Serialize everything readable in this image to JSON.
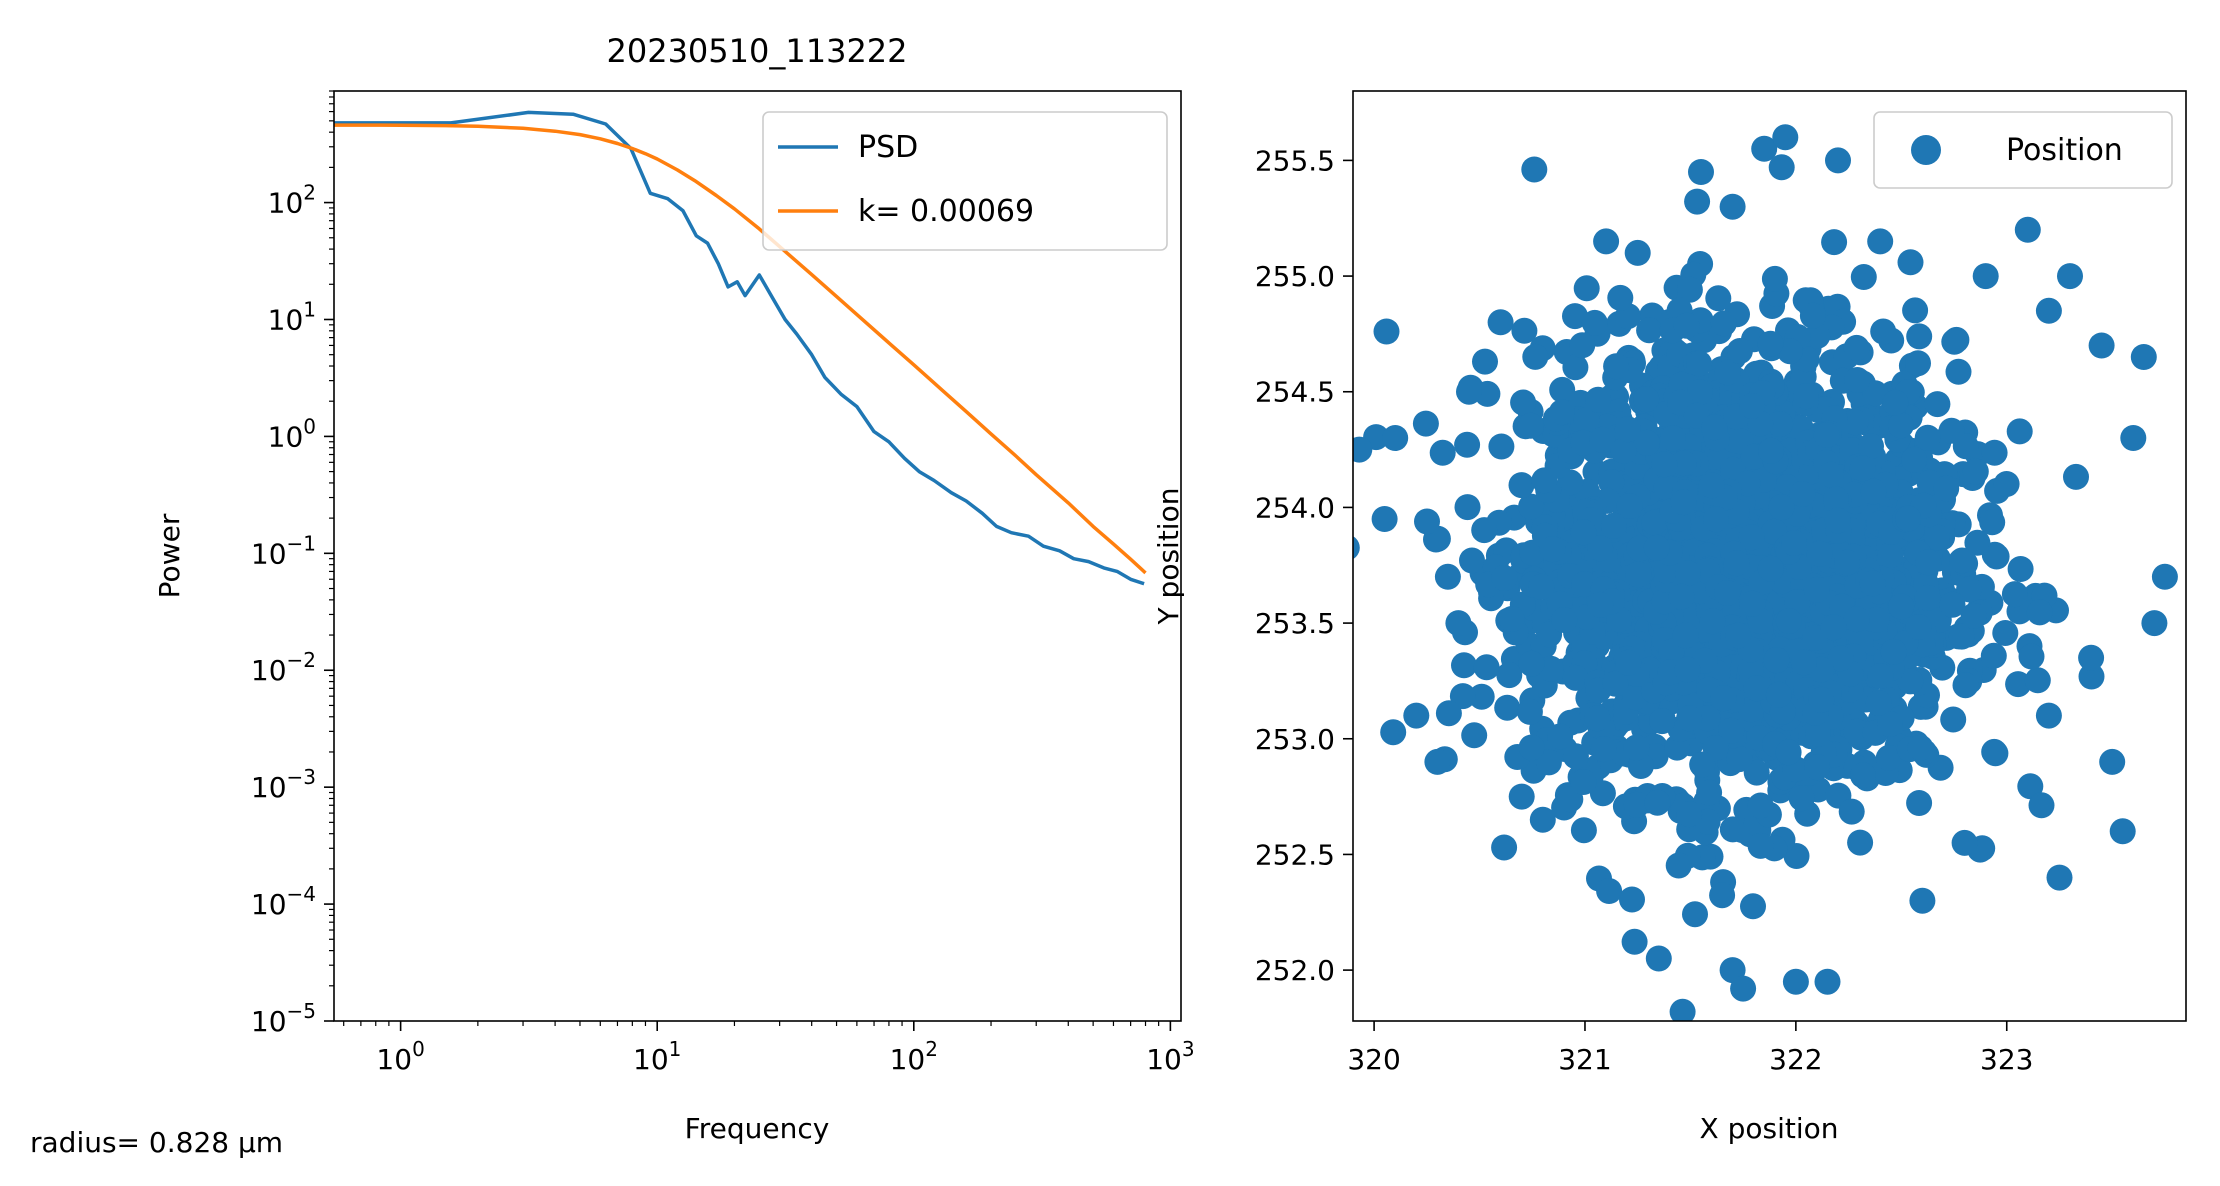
{
  "figure_note": "radius= 0.828 µm",
  "colors": {
    "blue": "#1f77b4",
    "orange": "#ff7f0e"
  },
  "chart_data": [
    {
      "type": "line",
      "title": "20230510_113222",
      "xlabel": "Frequency",
      "ylabel": "Power",
      "xscale": "log",
      "yscale": "log",
      "xlim": [
        0.55,
        1100
      ],
      "ylim": [
        1e-05,
        900
      ],
      "xticks": [
        1,
        10,
        100,
        1000
      ],
      "yticks": [
        1e-05,
        0.0001,
        0.001,
        0.01,
        0.1,
        1,
        10,
        100
      ],
      "legend_position": "top-right",
      "series": [
        {
          "name": "PSD",
          "color": "#1f77b4",
          "x": [
            0.55,
            1.57,
            3.15,
            4.7,
            6.3,
            7.9,
            9.4,
            11.0,
            12.6,
            14.2,
            15.7,
            17.3,
            18.9,
            20.5,
            22.0,
            25.0,
            28.3,
            31.5,
            35,
            40,
            45,
            52,
            60,
            70,
            80,
            92,
            105,
            120,
            140,
            160,
            185,
            210,
            240,
            280,
            320,
            370,
            420,
            480,
            550,
            620,
            700,
            790
          ],
          "y": [
            480,
            480,
            590,
            570,
            470,
            290,
            120,
            108,
            85,
            52,
            45,
            30,
            19,
            21,
            16,
            24,
            15,
            10,
            7.5,
            5,
            3.2,
            2.3,
            1.8,
            1.1,
            0.9,
            0.65,
            0.5,
            0.42,
            0.33,
            0.28,
            0.22,
            0.17,
            0.15,
            0.14,
            0.115,
            0.105,
            0.09,
            0.085,
            0.075,
            0.07,
            0.06,
            0.055
          ]
        },
        {
          "name": "k= 0.00069",
          "color": "#ff7f0e",
          "x": [
            0.55,
            1,
            1.5,
            2,
            3,
            4,
            5,
            6,
            7,
            8,
            9,
            10,
            12,
            14,
            17,
            20,
            25,
            30,
            40,
            50,
            60,
            80,
            100,
            130,
            160,
            200,
            250,
            300,
            400,
            500,
            600,
            700,
            800
          ],
          "y": [
            460,
            459,
            455,
            449,
            432,
            408,
            381,
            351,
            320,
            290,
            262,
            236,
            190,
            154,
            115,
            88.5,
            59.5,
            42.0,
            24.2,
            15.7,
            11.0,
            6.3,
            4.1,
            2.45,
            1.63,
            1.05,
            0.68,
            0.47,
            0.27,
            0.17,
            0.12,
            0.089,
            0.068
          ]
        }
      ]
    },
    {
      "type": "scatter",
      "xlabel": "X position",
      "ylabel": "Y position",
      "xlim": [
        319.9,
        323.85
      ],
      "ylim": [
        251.78,
        255.8
      ],
      "xticks": [
        320,
        321,
        322,
        323
      ],
      "yticks": [
        252.0,
        252.5,
        253.0,
        253.5,
        254.0,
        254.5,
        255.0,
        255.5
      ],
      "legend_position": "top-right",
      "series": [
        {
          "name": "Position",
          "color": "#1f77b4",
          "center": [
            321.75,
            253.75
          ],
          "spread": [
            0.5,
            0.48
          ],
          "n_points": 2500,
          "outliers": [
            [
              319.93,
              254.25
            ],
            [
              320.05,
              253.95
            ],
            [
              320.1,
              254.3
            ],
            [
              320.2,
              253.1
            ],
            [
              320.3,
              252.9
            ],
            [
              320.45,
              254.5
            ],
            [
              320.6,
              254.8
            ],
            [
              320.7,
              252.75
            ],
            [
              320.8,
              252.65
            ],
            [
              321.1,
              255.15
            ],
            [
              321.25,
              255.1
            ],
            [
              321.55,
              255.45
            ],
            [
              321.7,
              255.3
            ],
            [
              321.7,
              252.0
            ],
            [
              321.75,
              251.92
            ],
            [
              321.85,
              255.55
            ],
            [
              321.95,
              255.6
            ],
            [
              322.0,
              251.95
            ],
            [
              322.15,
              251.95
            ],
            [
              322.2,
              255.5
            ],
            [
              322.4,
              255.15
            ],
            [
              322.8,
              252.55
            ],
            [
              322.9,
              255.0
            ],
            [
              323.1,
              255.2
            ],
            [
              323.2,
              254.85
            ],
            [
              323.25,
              252.4
            ],
            [
              323.3,
              255.0
            ],
            [
              323.45,
              254.7
            ],
            [
              323.55,
              252.6
            ],
            [
              323.65,
              254.65
            ],
            [
              323.7,
              253.5
            ],
            [
              323.75,
              253.7
            ],
            [
              323.2,
              253.1
            ],
            [
              323.5,
              252.9
            ],
            [
              320.4,
              253.5
            ],
            [
              320.35,
              253.7
            ],
            [
              322.6,
              252.3
            ],
            [
              321.35,
              252.05
            ],
            [
              323.4,
              253.35
            ],
            [
              323.6,
              254.3
            ]
          ]
        }
      ]
    }
  ]
}
